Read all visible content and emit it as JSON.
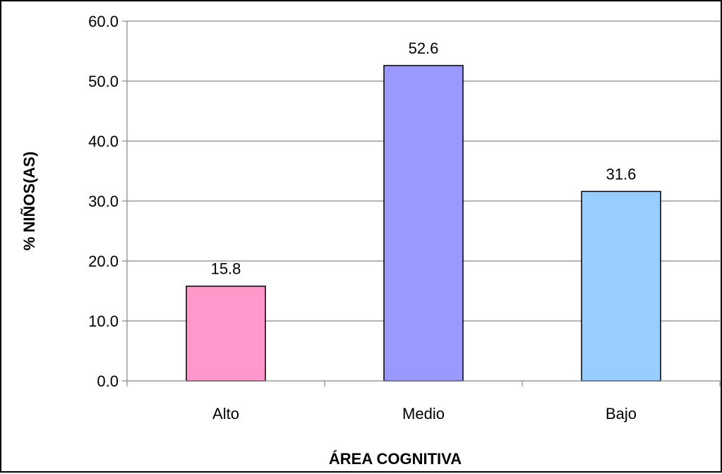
{
  "chart_data": {
    "type": "bar",
    "categories": [
      "Alto",
      "Medio",
      "Bajo"
    ],
    "values": [
      15.8,
      52.6,
      31.6
    ],
    "value_labels": [
      "15.8",
      "52.6",
      "31.6"
    ],
    "bar_colors": [
      "#ff99cc",
      "#9999ff",
      "#99ccff"
    ],
    "title": "",
    "xlabel": "ÁREA COGNITIVA",
    "ylabel": "% NIÑOS(AS)",
    "ylim": [
      0,
      60
    ],
    "yticks": [
      0,
      10,
      20,
      30,
      40,
      50,
      60
    ],
    "ytick_labels": [
      "0.0",
      "10.0",
      "20.0",
      "30.0",
      "40.0",
      "50.0",
      "60.0"
    ],
    "grid": true,
    "legend": "none"
  }
}
